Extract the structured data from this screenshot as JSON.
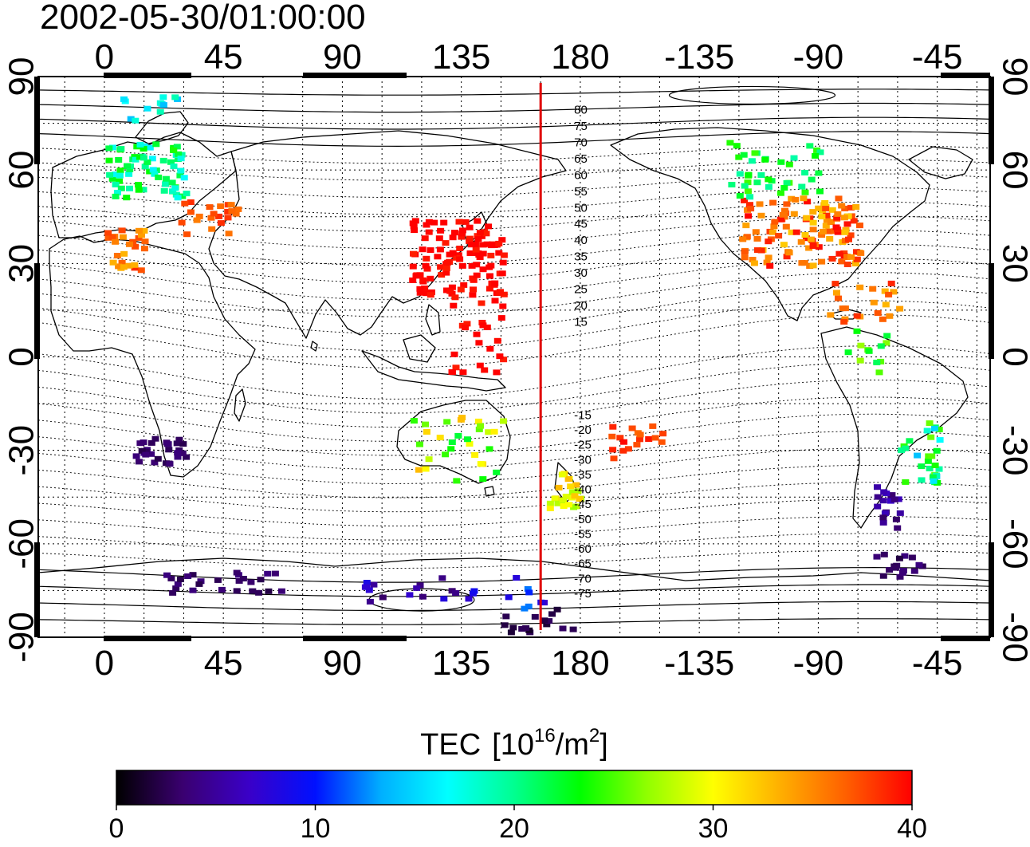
{
  "timestamp": "2002-05-30/01:00:00",
  "map": {
    "lon_ticks": [
      "0",
      "45",
      "90",
      "135",
      "180",
      "-135",
      "-90",
      "-45"
    ],
    "lat_ticks": [
      "90",
      "60",
      "30",
      "0",
      "-30",
      "-60",
      "-90"
    ],
    "lon_range": [
      -25,
      335
    ],
    "lat_range": [
      -90,
      90
    ],
    "meridian_line_lon": 165,
    "meridian_line_color": "#e00000",
    "contour_labels": [
      "80",
      "75",
      "70",
      "65",
      "60",
      "55",
      "50",
      "45",
      "40",
      "35",
      "30",
      "25",
      "20",
      "15",
      "-15",
      "-20",
      "-25",
      "-30",
      "-35",
      "-40",
      "-45",
      "-50",
      "-55",
      "-60",
      "-65",
      "-70",
      "-75"
    ]
  },
  "colorbar": {
    "title": "TEC",
    "unit_base": "10",
    "unit_exp": "16",
    "unit_mid": "/m",
    "unit_exp2": "2",
    "ticks": [
      "0",
      "10",
      "20",
      "30",
      "40"
    ],
    "range": [
      0,
      40
    ],
    "stops": [
      "#000000",
      "#3a0070",
      "#3a00c8",
      "#0010ff",
      "#00b0ff",
      "#00ffff",
      "#00ff90",
      "#00ff00",
      "#90ff00",
      "#ffff00",
      "#ffb000",
      "#ff6000",
      "#ff0000"
    ]
  }
}
